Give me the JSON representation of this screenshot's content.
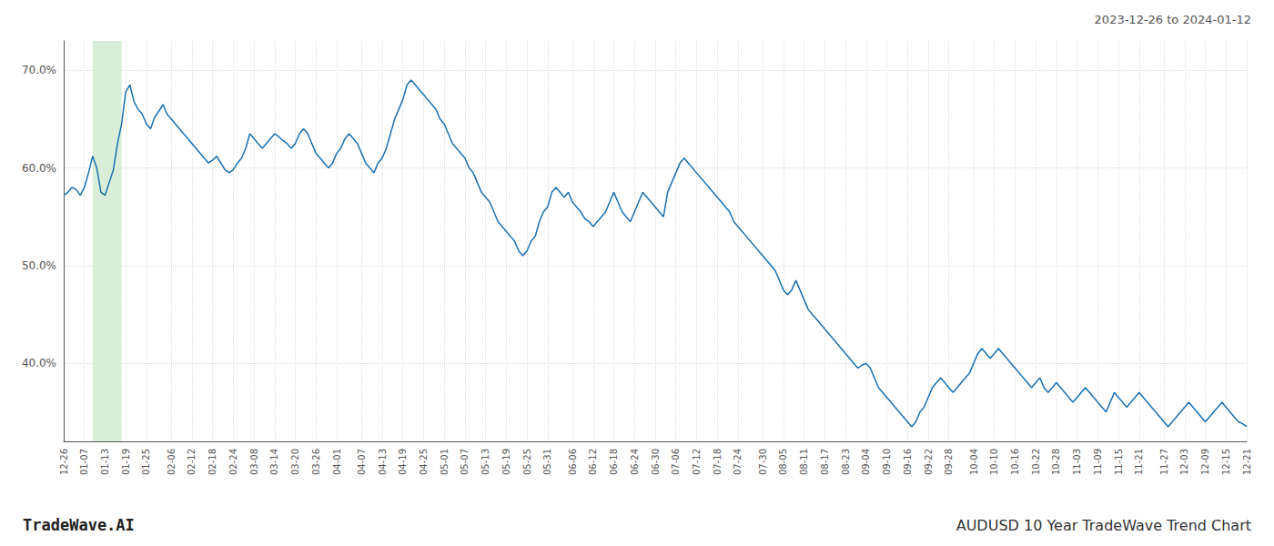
{
  "chart_data": {
    "type": "line",
    "title": "AUDUSD 10 Year TradeWave Trend Chart",
    "subtitle": "2023-12-26 to 2024-01-12",
    "annotations": [
      "TradeWave.AI"
    ],
    "color": "#1a6faf",
    "grid": true,
    "ylim": [
      32,
      73
    ],
    "yticks": [
      {
        "value": 40,
        "label": "40.0%"
      },
      {
        "value": 50,
        "label": "50.0%"
      },
      {
        "value": 60,
        "label": "60.0%"
      },
      {
        "value": 70,
        "label": "70.0%"
      }
    ],
    "highlight": {
      "from": 7,
      "to": 14,
      "color": "#d8eed8"
    },
    "categories": [
      "12-26",
      null,
      null,
      null,
      null,
      "01-07",
      null,
      null,
      null,
      null,
      "01-13",
      null,
      null,
      null,
      null,
      "01-19",
      null,
      null,
      null,
      null,
      "01-25",
      null,
      null,
      null,
      null,
      null,
      "02-06",
      null,
      null,
      null,
      null,
      "02-12",
      null,
      null,
      null,
      null,
      "02-18",
      null,
      null,
      null,
      null,
      "02-24",
      null,
      null,
      null,
      null,
      "03-08",
      null,
      null,
      null,
      null,
      "03-14",
      null,
      null,
      null,
      null,
      "03-20",
      null,
      null,
      null,
      null,
      "03-26",
      null,
      null,
      null,
      null,
      "04-01",
      null,
      null,
      null,
      null,
      null,
      "04-07",
      null,
      null,
      null,
      null,
      "04-13",
      null,
      null,
      null,
      null,
      "04-19",
      null,
      null,
      null,
      null,
      "04-25",
      null,
      null,
      null,
      null,
      "05-01",
      null,
      null,
      null,
      null,
      "05-07",
      null,
      null,
      null,
      null,
      "05-13",
      null,
      null,
      null,
      null,
      "05-19",
      null,
      null,
      null,
      null,
      "05-25",
      null,
      null,
      null,
      null,
      "05-31",
      null,
      null,
      null,
      null,
      null,
      "06-06",
      null,
      null,
      null,
      null,
      "06-12",
      null,
      null,
      null,
      null,
      "06-18",
      null,
      null,
      null,
      null,
      "06-24",
      null,
      null,
      null,
      null,
      "06-30",
      null,
      null,
      null,
      null,
      "07-06",
      null,
      null,
      null,
      null,
      "07-12",
      null,
      null,
      null,
      null,
      "07-18",
      null,
      null,
      null,
      null,
      "07-24",
      null,
      null,
      null,
      null,
      null,
      "07-30",
      null,
      null,
      null,
      null,
      "08-05",
      null,
      null,
      null,
      null,
      "08-11",
      null,
      null,
      null,
      null,
      "08-17",
      null,
      null,
      null,
      null,
      "08-23",
      null,
      null,
      null,
      null,
      "09-04",
      null,
      null,
      null,
      null,
      "09-10",
      null,
      null,
      null,
      null,
      "09-16",
      null,
      null,
      null,
      null,
      "09-22",
      null,
      null,
      null,
      null,
      "09-28",
      null,
      null,
      null,
      null,
      null,
      "10-04",
      null,
      null,
      null,
      null,
      "10-10",
      null,
      null,
      null,
      null,
      "10-16",
      null,
      null,
      null,
      null,
      "10-22",
      null,
      null,
      null,
      null,
      "10-28",
      null,
      null,
      null,
      null,
      "11-03",
      null,
      null,
      null,
      null,
      "11-09",
      null,
      null,
      null,
      null,
      "11-15",
      null,
      null,
      null,
      null,
      "11-21",
      null,
      null,
      null,
      null,
      null,
      "11-27",
      null,
      null,
      null,
      null,
      "12-03",
      null,
      null,
      null,
      null,
      "12-09",
      null,
      null,
      null,
      null,
      "12-15",
      null,
      null,
      null,
      null,
      "12-21"
    ],
    "values": [
      57.2,
      57.5,
      58.0,
      57.8,
      57.2,
      58.0,
      59.5,
      61.2,
      60.0,
      57.5,
      57.2,
      58.5,
      59.8,
      62.5,
      64.5,
      67.8,
      68.5,
      66.8,
      66.0,
      65.5,
      64.5,
      64.0,
      65.2,
      65.8,
      66.5,
      65.5,
      65.0,
      64.5,
      64.0,
      63.5,
      63.0,
      62.5,
      62.0,
      61.5,
      61.0,
      60.5,
      60.8,
      61.2,
      60.5,
      59.8,
      59.5,
      59.8,
      60.5,
      61.0,
      62.0,
      63.5,
      63.0,
      62.5,
      62.0,
      62.5,
      63.0,
      63.5,
      63.2,
      62.8,
      62.5,
      62.0,
      62.5,
      63.5,
      64.0,
      63.5,
      62.5,
      61.5,
      61.0,
      60.5,
      60.0,
      60.5,
      61.5,
      62.0,
      63.0,
      63.5,
      63.0,
      62.5,
      61.5,
      60.5,
      60.0,
      59.5,
      60.5,
      61.0,
      62.0,
      63.5,
      65.0,
      66.0,
      67.0,
      68.5,
      69.0,
      68.5,
      68.0,
      67.5,
      67.0,
      66.5,
      66.0,
      65.0,
      64.5,
      63.5,
      62.5,
      62.0,
      61.5,
      61.0,
      60.0,
      59.5,
      58.5,
      57.5,
      57.0,
      56.5,
      55.5,
      54.5,
      54.0,
      53.5,
      53.0,
      52.5,
      51.5,
      51.0,
      51.5,
      52.5,
      53.0,
      54.5,
      55.5,
      56.0,
      57.5,
      58.0,
      57.5,
      57.0,
      57.5,
      56.5,
      56.0,
      55.5,
      54.8,
      54.5,
      54.0,
      54.5,
      55.0,
      55.5,
      56.5,
      57.5,
      56.5,
      55.5,
      55.0,
      54.5,
      55.5,
      56.5,
      57.5,
      57.0,
      56.5,
      56.0,
      55.5,
      55.0,
      57.5,
      58.5,
      59.5,
      60.5,
      61.0,
      60.5,
      60.0,
      59.5,
      59.0,
      58.5,
      58.0,
      57.5,
      57.0,
      56.5,
      56.0,
      55.5,
      54.5,
      54.0,
      53.5,
      53.0,
      52.5,
      52.0,
      51.5,
      51.0,
      50.5,
      50.0,
      49.5,
      48.5,
      47.5,
      47.0,
      47.5,
      48.5,
      47.5,
      46.5,
      45.5,
      45.0,
      44.5,
      44.0,
      43.5,
      43.0,
      42.5,
      42.0,
      41.5,
      41.0,
      40.5,
      40.0,
      39.5,
      39.8,
      40.0,
      39.5,
      38.5,
      37.5,
      37.0,
      36.5,
      36.0,
      35.5,
      35.0,
      34.5,
      34.0,
      33.5,
      34.0,
      35.0,
      35.5,
      36.5,
      37.5,
      38.0,
      38.5,
      38.0,
      37.5,
      37.0,
      37.5,
      38.0,
      38.5,
      39.0,
      40.0,
      41.0,
      41.5,
      41.0,
      40.5,
      41.0,
      41.5,
      41.0,
      40.5,
      40.0,
      39.5,
      39.0,
      38.5,
      38.0,
      37.5,
      38.0,
      38.5,
      37.5,
      37.0,
      37.5,
      38.0,
      37.5,
      37.0,
      36.5,
      36.0,
      36.5,
      37.0,
      37.5,
      37.0,
      36.5,
      36.0,
      35.5,
      35.0,
      36.0,
      37.0,
      36.5,
      36.0,
      35.5,
      36.0,
      36.5,
      37.0,
      36.5,
      36.0,
      35.5,
      35.0,
      34.5,
      34.0,
      33.5,
      34.0,
      34.5,
      35.0,
      35.5,
      36.0,
      35.5,
      35.0,
      34.5,
      34.0,
      34.5,
      35.0,
      35.5,
      36.0,
      35.5,
      35.0,
      34.5,
      34.0,
      33.8,
      33.5
    ]
  }
}
